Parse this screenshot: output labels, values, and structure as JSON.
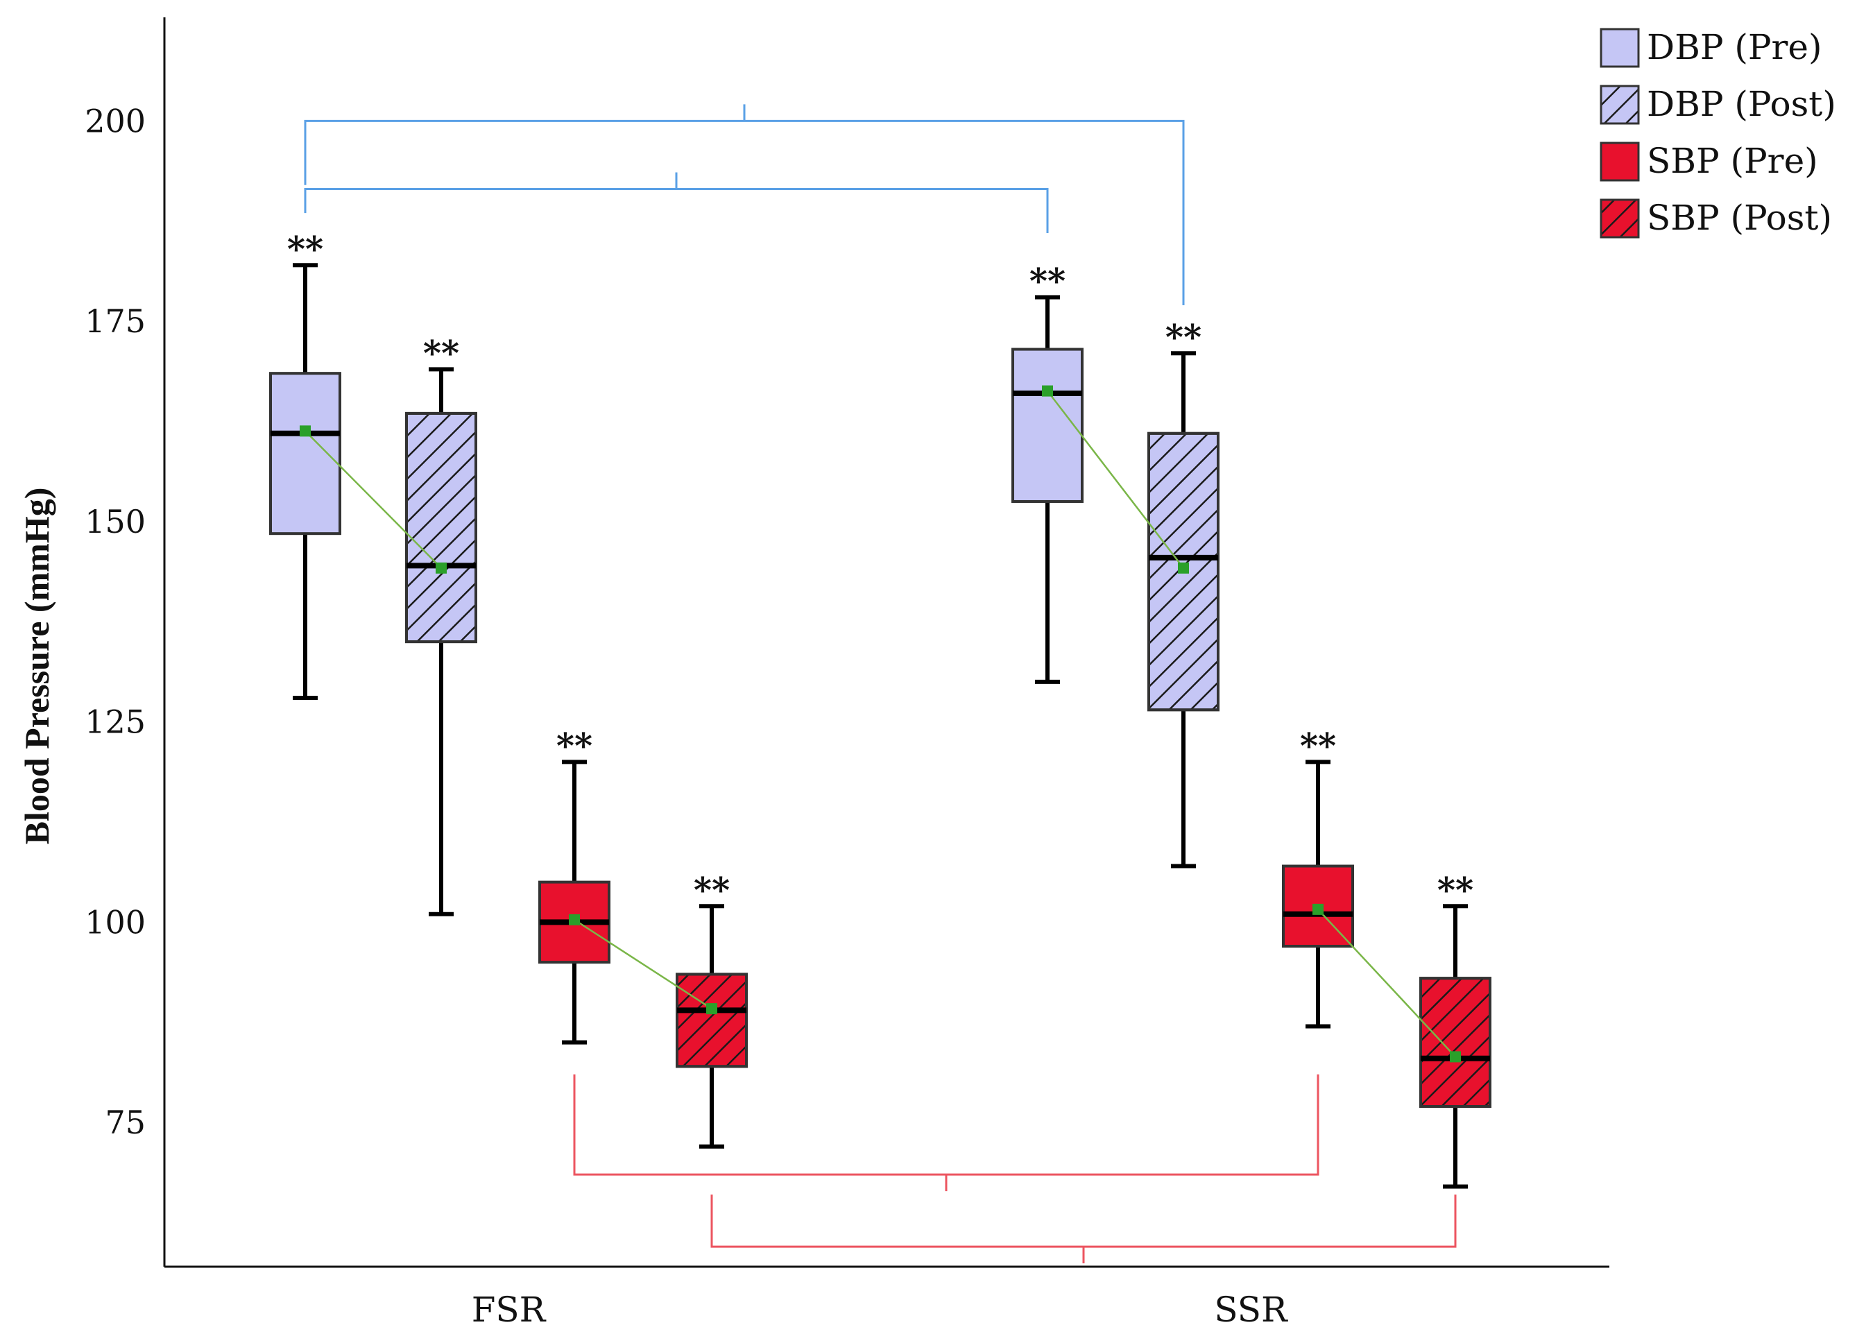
{
  "colors": {
    "dbp_fill": "#c5c6f5",
    "sbp_fill": "#e8112d",
    "hatch_stroke": "#1a1a1a",
    "box_stroke": "#333333",
    "median": "#000000",
    "mean_marker": "#2aa02a",
    "mean_line": "#7ab648",
    "dbp_bracket": "#5aa0e6",
    "sbp_bracket": "#ec5560",
    "axis": "#111111"
  },
  "chart_data": {
    "type": "box",
    "ylabel": "Blood Pressure (mmHg)",
    "xlabel": "",
    "ylim": [
      57,
      208
    ],
    "yticks": [
      75,
      100,
      125,
      150,
      175,
      200
    ],
    "grid": false,
    "legend_position": "top-right",
    "categories": [
      "FSR",
      "SSR"
    ],
    "series": [
      {
        "name": "DBP (Pre)",
        "fill": "dbp",
        "hatched": false
      },
      {
        "name": "DBP (Post)",
        "fill": "dbp",
        "hatched": true
      },
      {
        "name": "SBP (Pre)",
        "fill": "sbp",
        "hatched": false
      },
      {
        "name": "SBP (Post)",
        "fill": "sbp",
        "hatched": true
      }
    ],
    "boxes": [
      {
        "category": "FSR",
        "series": "DBP (Pre)",
        "min": 128,
        "q1": 148.5,
        "median": 161,
        "q3": 168.5,
        "max": 182,
        "mean": 161.3,
        "sig": "**"
      },
      {
        "category": "FSR",
        "series": "DBP (Post)",
        "min": 101,
        "q1": 135,
        "median": 144.5,
        "q3": 163.5,
        "max": 169,
        "mean": 144.2,
        "sig": "**"
      },
      {
        "category": "FSR",
        "series": "SBP (Pre)",
        "min": 85,
        "q1": 95,
        "median": 100,
        "q3": 105,
        "max": 120,
        "mean": 100.3,
        "sig": "**"
      },
      {
        "category": "FSR",
        "series": "SBP (Post)",
        "min": 72,
        "q1": 82,
        "median": 89,
        "q3": 93.5,
        "max": 102,
        "mean": 89.2,
        "sig": "**"
      },
      {
        "category": "SSR",
        "series": "DBP (Pre)",
        "min": 130,
        "q1": 152.5,
        "median": 166,
        "q3": 171.5,
        "max": 178,
        "mean": 166.3,
        "sig": "**"
      },
      {
        "category": "SSR",
        "series": "DBP (Post)",
        "min": 107,
        "q1": 126.5,
        "median": 145.5,
        "q3": 161,
        "max": 171,
        "mean": 144.2,
        "sig": "**"
      },
      {
        "category": "SSR",
        "series": "SBP (Pre)",
        "min": 87,
        "q1": 97,
        "median": 101,
        "q3": 107,
        "max": 120,
        "mean": 101.6,
        "sig": "**"
      },
      {
        "category": "SSR",
        "series": "SBP (Post)",
        "min": 67,
        "q1": 77,
        "median": 83,
        "q3": 93,
        "max": 102,
        "mean": 83.2,
        "sig": "**"
      }
    ],
    "brackets": [
      {
        "from": 0,
        "to": 5,
        "y": 200,
        "direction": "down",
        "group": "dbp",
        "ends": [
          192,
          177
        ]
      },
      {
        "from": 0,
        "to": 4,
        "y": 191.5,
        "direction": "down",
        "group": "dbp",
        "ends": [
          188.5,
          186
        ]
      },
      {
        "from": 2,
        "to": 6,
        "y": 68.5,
        "direction": "up",
        "group": "sbp",
        "ends": [
          81,
          81
        ]
      },
      {
        "from": 3,
        "to": 7,
        "y": 59.5,
        "direction": "up",
        "group": "sbp",
        "ends": [
          66,
          66
        ]
      }
    ]
  }
}
